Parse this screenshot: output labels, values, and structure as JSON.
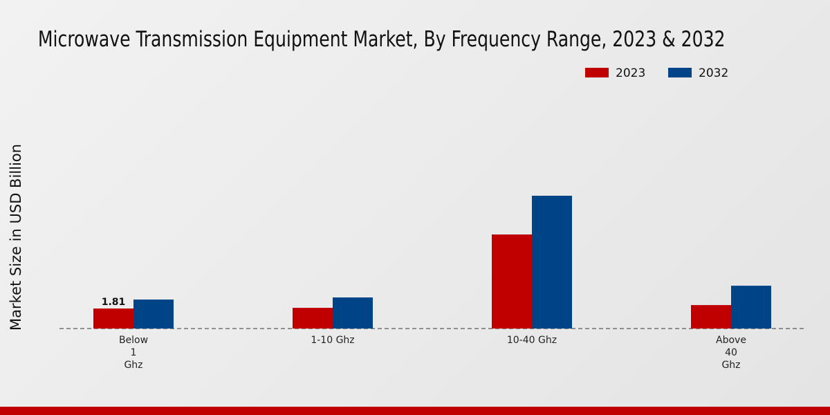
{
  "chart_data": {
    "type": "bar",
    "title": "Microwave Transmission Equipment Market, By Frequency Range, 2023 & 2032",
    "y_label": "Market Size in USD Billion",
    "categories": [
      "Below\n1\nGhz",
      "1-10 Ghz",
      "10-40 Ghz",
      "Above\n40\nGhz"
    ],
    "series": [
      {
        "name": "2023",
        "color": "#c00000",
        "values": [
          1.81,
          1.87,
          8.5,
          2.12
        ]
      },
      {
        "name": "2032",
        "color": "#004488",
        "values": [
          2.62,
          2.81,
          12.0,
          3.87
        ]
      }
    ],
    "legend": "top-right"
  }
}
